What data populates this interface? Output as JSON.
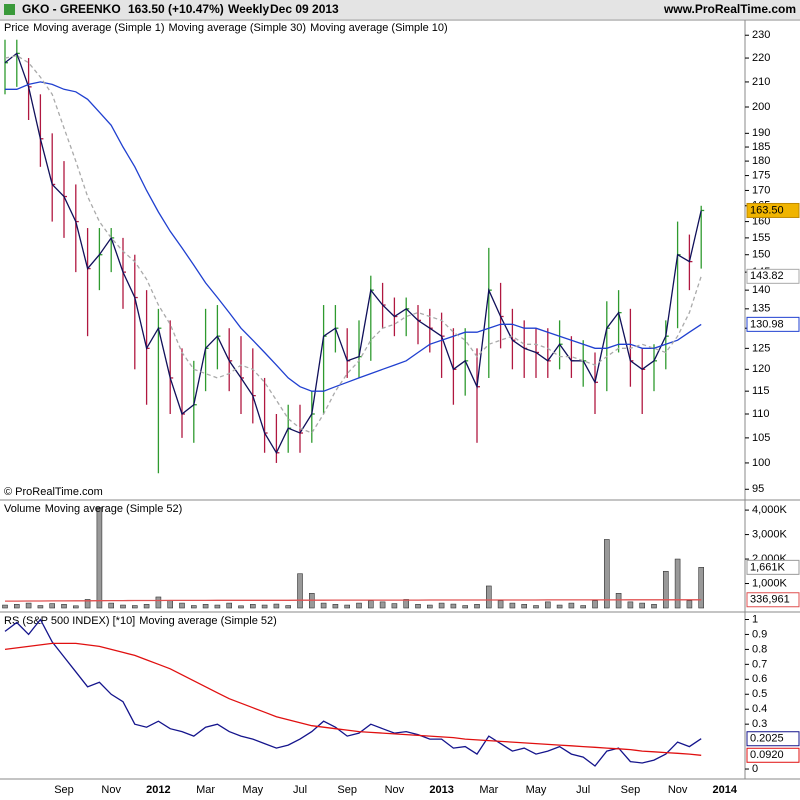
{
  "header": {
    "symbol": "GKO - GREENKO",
    "quote": "163.50 (+10.47%)",
    "period": "Weekly",
    "date": "Dec 09 2013",
    "site": "www.ProRealTime.com"
  },
  "watermark": "© ProRealTime.com",
  "chart_data": [
    {
      "type": "ohlc",
      "log": true,
      "ylim": [
        93.4,
        236
      ],
      "yticks": [
        95,
        100,
        105,
        110,
        115,
        120,
        125,
        130,
        135,
        140,
        145,
        150,
        155,
        160,
        165,
        170,
        175,
        180,
        185,
        190,
        200,
        210,
        220,
        230
      ],
      "categories": [
        null,
        null,
        null,
        null,
        null,
        "Sep",
        null,
        null,
        null,
        "Nov",
        null,
        null,
        null,
        "2012",
        null,
        null,
        null,
        "Mar",
        null,
        null,
        null,
        "May",
        null,
        null,
        null,
        "Jul",
        null,
        null,
        null,
        "Sep",
        null,
        null,
        null,
        "Nov",
        null,
        null,
        null,
        "2013",
        null,
        null,
        null,
        "Mar",
        null,
        null,
        null,
        "May",
        null,
        null,
        null,
        "Jul",
        null,
        null,
        null,
        "Sep",
        null,
        null,
        null,
        "Nov",
        null,
        null,
        null,
        "2014"
      ],
      "series": [
        {
          "name": "Price",
          "type": "ohlc",
          "color": "#000000",
          "up_color": "#2e9a2e",
          "down_color": "#b01840",
          "label_fill": "#f0b400",
          "last_label": "163.50",
          "high": [
            228,
            228,
            220,
            205,
            190,
            180,
            172,
            158,
            158,
            158,
            155,
            150,
            140,
            135,
            132,
            125,
            122,
            135,
            136,
            130,
            128,
            125,
            118,
            110,
            112,
            112,
            115,
            136,
            136,
            130,
            132,
            144,
            142,
            138,
            138,
            136,
            135,
            134,
            130,
            130,
            125,
            152,
            142,
            135,
            132,
            130,
            130,
            132,
            128,
            127,
            124,
            137,
            140,
            135,
            125,
            126,
            132,
            160,
            156,
            165,
            null,
            null
          ],
          "low": [
            205,
            208,
            195,
            178,
            160,
            155,
            145,
            128,
            140,
            145,
            135,
            120,
            112,
            98,
            110,
            105,
            104,
            115,
            120,
            115,
            110,
            108,
            102,
            100,
            102,
            102,
            104,
            110,
            124,
            118,
            118,
            122,
            130,
            128,
            128,
            126,
            124,
            118,
            112,
            114,
            104,
            118,
            125,
            120,
            118,
            118,
            118,
            120,
            118,
            116,
            110,
            115,
            124,
            116,
            110,
            115,
            120,
            130,
            140,
            146,
            null,
            null
          ],
          "values": [
            218,
            222,
            208,
            188,
            172,
            168,
            160,
            146,
            150,
            155,
            145,
            138,
            125,
            130,
            118,
            110,
            112,
            125,
            128,
            122,
            118,
            114,
            106,
            102,
            107,
            106,
            110,
            128,
            130,
            122,
            123,
            140,
            136,
            133,
            135,
            132,
            130,
            128,
            120,
            122,
            116,
            140,
            133,
            127,
            125,
            124,
            122,
            126,
            122,
            122,
            117,
            130,
            134,
            122,
            120,
            122,
            128,
            150,
            148,
            163.5,
            null,
            null
          ]
        },
        {
          "name": "Moving average (Simple 1)",
          "type": "line",
          "color": "#10105a",
          "values": [
            218,
            222,
            208,
            188,
            172,
            168,
            160,
            146,
            150,
            155,
            145,
            138,
            125,
            130,
            118,
            110,
            112,
            125,
            128,
            122,
            118,
            114,
            106,
            102,
            107,
            106,
            110,
            128,
            130,
            122,
            123,
            140,
            136,
            133,
            135,
            132,
            130,
            128,
            120,
            122,
            116,
            140,
            133,
            127,
            125,
            124,
            122,
            126,
            122,
            122,
            117,
            130,
            134,
            122,
            120,
            122,
            128,
            150,
            148,
            163.5,
            null,
            null
          ]
        },
        {
          "name": "Moving average (Simple 30)",
          "type": "line",
          "color": "#2040d0",
          "last_label": "130.98",
          "values": [
            207,
            207,
            209,
            210,
            209,
            207,
            206,
            203,
            198,
            193,
            185,
            178,
            170,
            163,
            157,
            152,
            147,
            142,
            138,
            134,
            130,
            127,
            124,
            121,
            118,
            116,
            115,
            115,
            116,
            117,
            118,
            119,
            120,
            121,
            122,
            124,
            126,
            127,
            128,
            129,
            129,
            130,
            131,
            131,
            130,
            130,
            129,
            128,
            127,
            126,
            125,
            125,
            126,
            126,
            125,
            125,
            126,
            127,
            129,
            130.98,
            null,
            null
          ]
        },
        {
          "name": "Moving average (Simple 10)",
          "type": "line",
          "color": "#aaaaaa",
          "dash": true,
          "last_label": "143.82",
          "values": [
            220,
            221,
            218,
            212,
            205,
            192,
            180,
            168,
            160,
            155,
            151,
            148,
            143,
            136,
            131,
            124,
            120,
            119,
            118,
            119,
            121,
            120,
            117,
            113,
            109,
            107,
            106,
            110,
            115,
            119,
            122,
            127,
            130,
            131,
            133,
            134,
            133,
            132,
            129,
            127,
            123,
            126,
            127,
            128,
            126,
            126,
            125,
            123,
            123,
            122,
            121,
            123,
            125,
            125,
            126,
            125,
            124,
            128,
            134,
            143.82,
            null,
            null
          ]
        }
      ]
    },
    {
      "type": "bar",
      "ylim": [
        0,
        4290
      ],
      "yticks": [
        {
          "value": 1000,
          "label": "1,000K"
        },
        {
          "value": 2000,
          "label": "2,000K"
        },
        {
          "value": 3000,
          "label": "3,000K"
        },
        {
          "value": 4000,
          "label": "4,000K"
        }
      ],
      "series": [
        {
          "name": "Volume",
          "type": "bar",
          "color": "#999999",
          "last_label": "1,661K",
          "values": [
            120,
            150,
            200,
            100,
            180,
            150,
            90,
            350,
            4100,
            200,
            120,
            100,
            150,
            450,
            300,
            200,
            100,
            150,
            120,
            200,
            90,
            150,
            120,
            160,
            100,
            1400,
            600,
            200,
            150,
            120,
            200,
            300,
            250,
            180,
            350,
            150,
            120,
            200,
            160,
            100,
            150,
            900,
            300,
            200,
            150,
            100,
            250,
            120,
            200,
            100,
            300,
            2800,
            600,
            250,
            200,
            150,
            1500,
            2000,
            300,
            1661,
            null,
            null
          ]
        },
        {
          "name": "Moving average (Simple 52)",
          "type": "line",
          "color": "#e05050",
          "last_label": "336,961",
          "values": [
            280,
            282,
            285,
            287,
            290,
            292,
            294,
            296,
            300,
            302,
            304,
            305,
            306,
            308,
            310,
            311,
            312,
            312,
            313,
            313,
            313,
            314,
            314,
            314,
            315,
            318,
            320,
            320,
            321,
            321,
            322,
            322,
            323,
            323,
            324,
            324,
            325,
            325,
            325,
            326,
            326,
            327,
            327,
            328,
            328,
            328,
            329,
            329,
            330,
            330,
            331,
            332,
            332,
            333,
            333,
            334,
            335,
            336,
            336,
            336.961,
            null,
            null
          ]
        }
      ]
    },
    {
      "type": "line",
      "ylim": [
        -0.06,
        1.03
      ],
      "yticks": [
        0,
        0.3,
        0.4,
        0.5,
        0.6,
        0.7,
        0.8,
        0.9,
        1
      ],
      "series": [
        {
          "name": "RS (S&P 500 INDEX) [*10]",
          "type": "line",
          "color": "#14148c",
          "last_label": "0.2025",
          "values": [
            0.92,
            0.98,
            0.9,
            1.0,
            0.85,
            0.75,
            0.65,
            0.55,
            0.58,
            0.5,
            0.45,
            0.3,
            0.28,
            0.32,
            0.27,
            0.25,
            0.22,
            0.28,
            0.3,
            0.25,
            0.22,
            0.2,
            0.17,
            0.14,
            0.16,
            0.2,
            0.25,
            0.32,
            0.28,
            0.22,
            0.24,
            0.3,
            0.27,
            0.24,
            0.25,
            0.23,
            0.2,
            0.2,
            0.14,
            0.15,
            0.1,
            0.22,
            0.17,
            0.12,
            0.14,
            0.1,
            0.12,
            0.15,
            0.1,
            0.08,
            0.02,
            0.12,
            0.14,
            0.05,
            0.04,
            0.06,
            0.1,
            0.18,
            0.15,
            0.2025,
            null,
            null
          ]
        },
        {
          "name": "Moving average (Simple 52)",
          "type": "line",
          "color": "#e01010",
          "last_label": "0.0920",
          "values": [
            0.8,
            0.81,
            0.82,
            0.83,
            0.84,
            0.84,
            0.84,
            0.83,
            0.82,
            0.8,
            0.78,
            0.76,
            0.73,
            0.7,
            0.67,
            0.63,
            0.59,
            0.55,
            0.51,
            0.47,
            0.44,
            0.41,
            0.38,
            0.35,
            0.33,
            0.31,
            0.29,
            0.28,
            0.27,
            0.26,
            0.25,
            0.245,
            0.24,
            0.235,
            0.23,
            0.225,
            0.22,
            0.215,
            0.21,
            0.2,
            0.195,
            0.19,
            0.185,
            0.18,
            0.175,
            0.17,
            0.165,
            0.16,
            0.155,
            0.15,
            0.145,
            0.14,
            0.135,
            0.13,
            0.12,
            0.115,
            0.11,
            0.105,
            0.1,
            0.092,
            null,
            null
          ]
        }
      ]
    }
  ]
}
